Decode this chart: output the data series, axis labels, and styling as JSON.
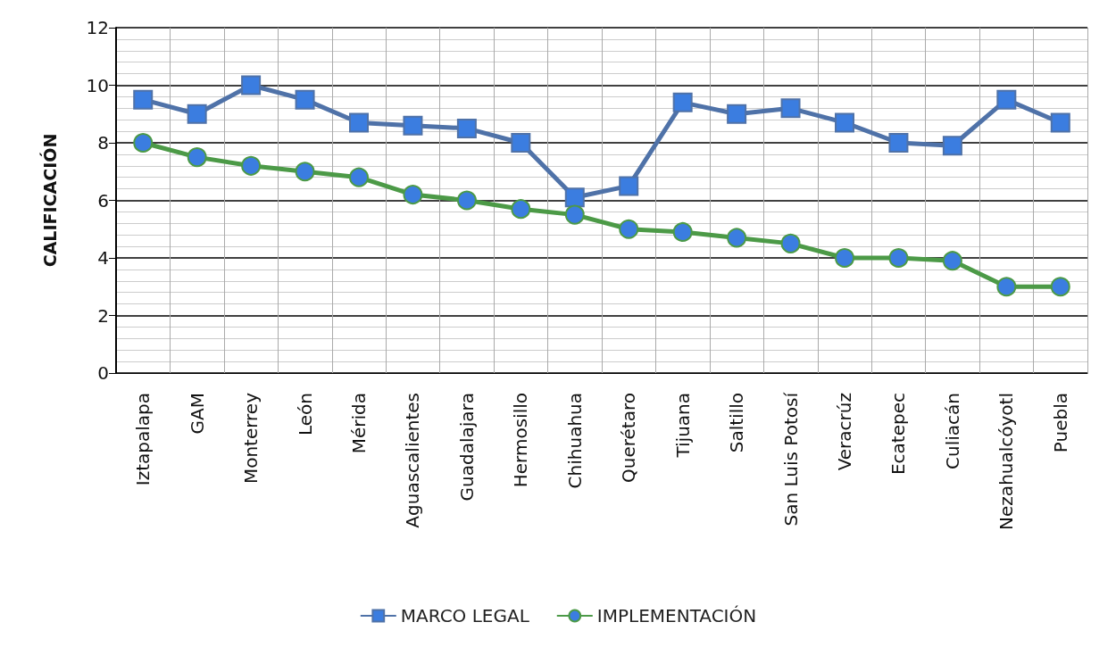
{
  "chart_data": {
    "type": "line",
    "ylabel": "CALIFICACIÓN",
    "categories": [
      "Iztapalapa",
      "GAM",
      "Monterrey",
      "León",
      "Mérida",
      "Aguascalientes",
      "Guadalajara",
      "Hermosillo",
      "Chihuahua",
      "Querétaro",
      "Tijuana",
      "Saltillo",
      "San Luis Potosí",
      "Veracrúz",
      "Ecatepec",
      "Culiacán",
      "Nezahualcóyotl",
      "Puebla"
    ],
    "series": [
      {
        "name": "MARCO LEGAL",
        "color": "#4f72a8",
        "marker": "square",
        "values": [
          9.5,
          9.0,
          10,
          9.5,
          8.7,
          8.6,
          8.5,
          8.0,
          6.1,
          6.5,
          9.4,
          9.0,
          9.2,
          8.7,
          8.0,
          7.9,
          9.5,
          8.7
        ]
      },
      {
        "name": "IMPLEMENTACIÓN",
        "color": "#4c9a47",
        "marker": "circle",
        "values": [
          8.0,
          7.5,
          7.2,
          7.0,
          6.8,
          6.2,
          6.0,
          5.7,
          5.5,
          5.0,
          4.9,
          4.7,
          4.5,
          4.0,
          4.0,
          3.9,
          3.0,
          3.0
        ]
      }
    ],
    "ylim": [
      0,
      12
    ],
    "yticks": [
      0,
      2,
      4,
      6,
      8,
      10,
      12
    ],
    "grid": true,
    "legend": "bottom",
    "line_style": "solid"
  }
}
